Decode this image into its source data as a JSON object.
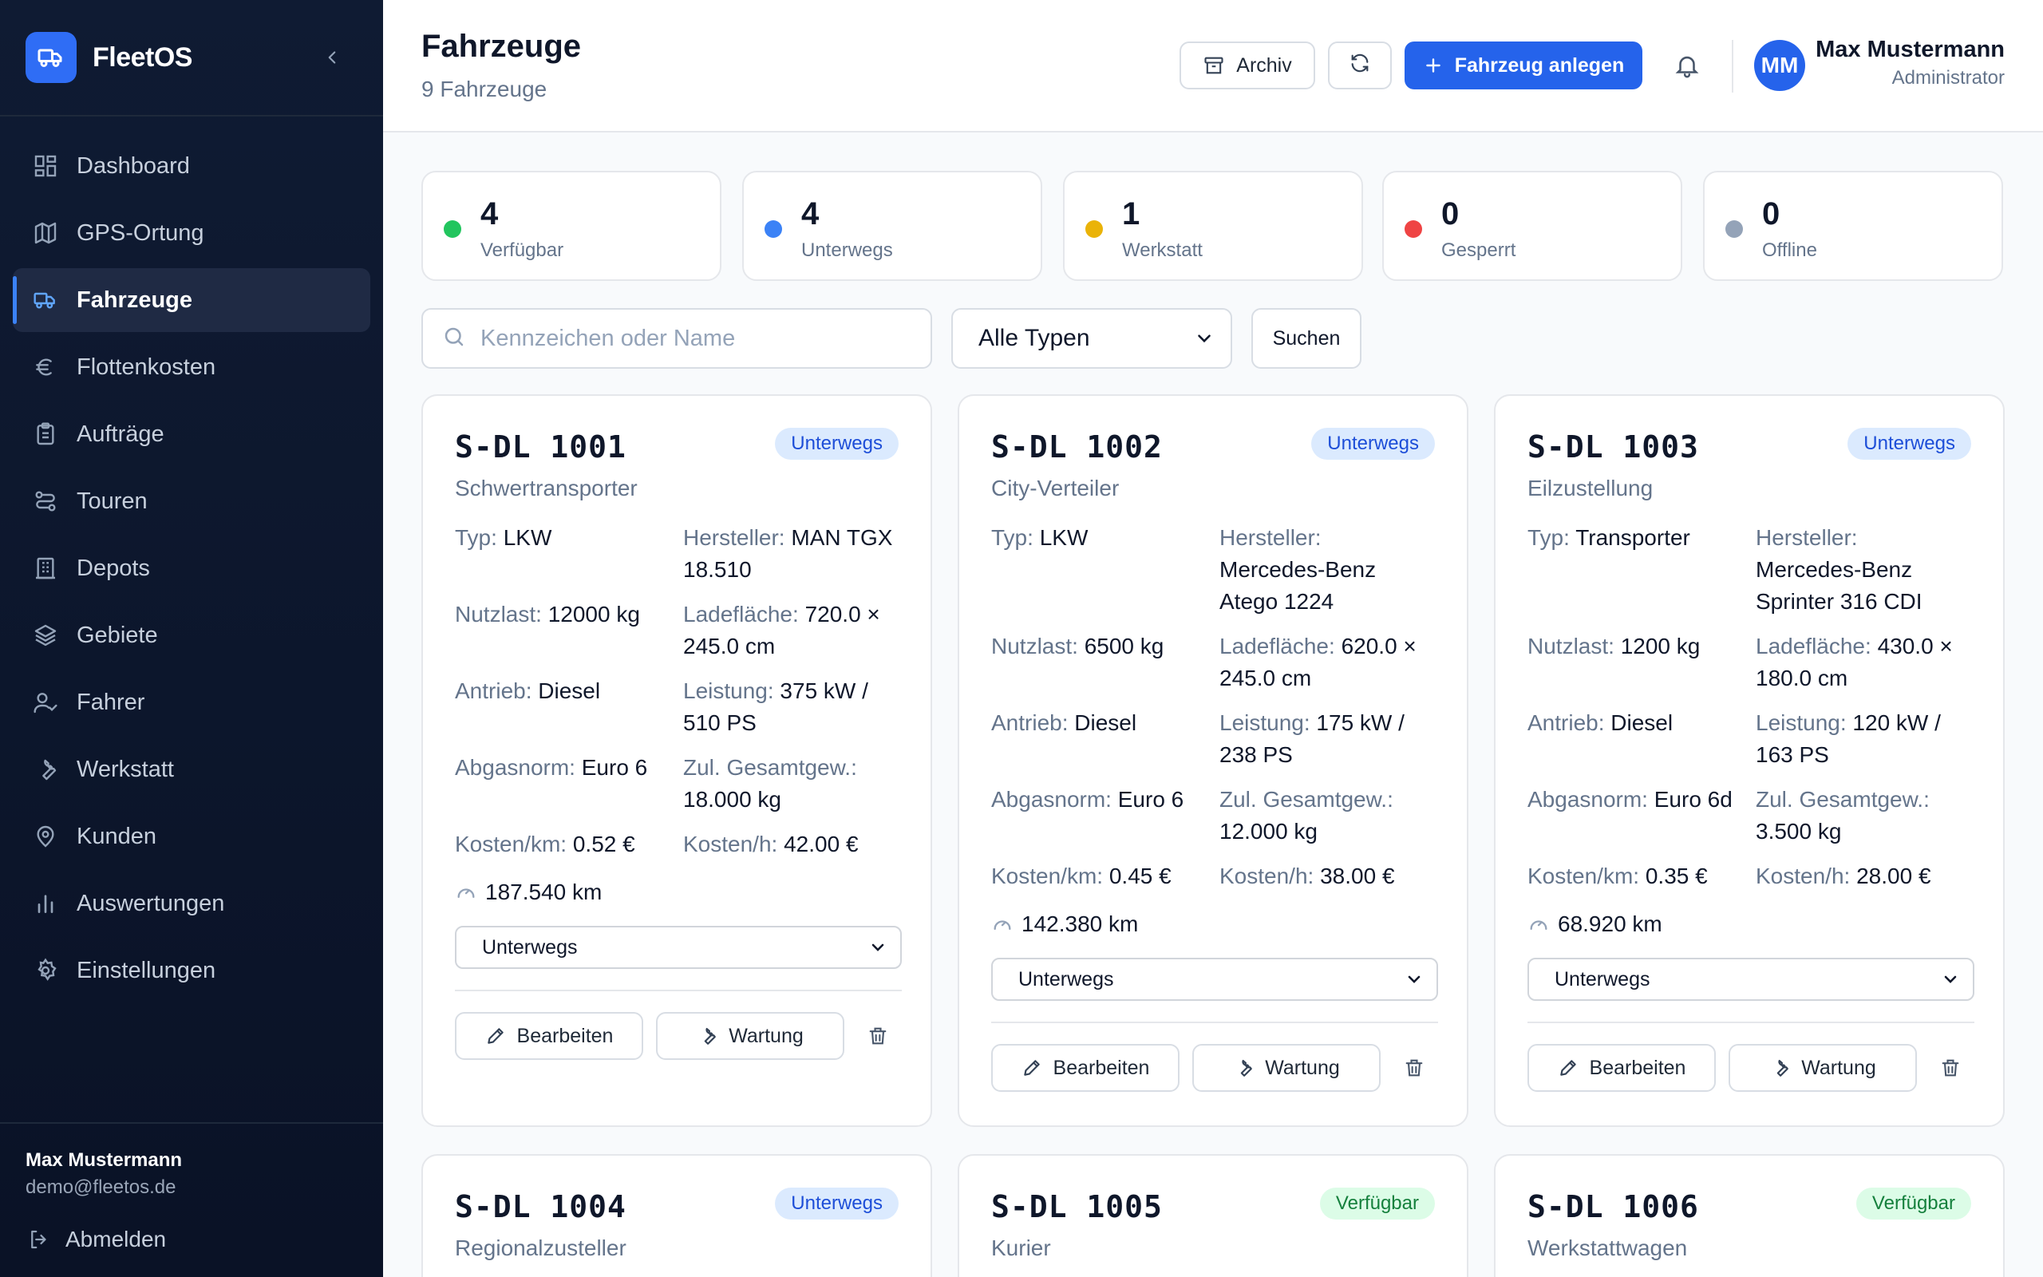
{
  "app": {
    "name": "FleetOS"
  },
  "sidebar": {
    "items": [
      {
        "label": "Dashboard",
        "icon": "dashboard-icon"
      },
      {
        "label": "GPS-Ortung",
        "icon": "map-icon"
      },
      {
        "label": "Fahrzeuge",
        "icon": "truck-icon",
        "active": true
      },
      {
        "label": "Flottenkosten",
        "icon": "euro-icon"
      },
      {
        "label": "Aufträge",
        "icon": "clipboard-icon"
      },
      {
        "label": "Touren",
        "icon": "route-icon"
      },
      {
        "label": "Depots",
        "icon": "building-icon"
      },
      {
        "label": "Gebiete",
        "icon": "layers-icon"
      },
      {
        "label": "Fahrer",
        "icon": "user-check-icon"
      },
      {
        "label": "Werkstatt",
        "icon": "wrench-icon"
      },
      {
        "label": "Kunden",
        "icon": "map-pin-icon"
      },
      {
        "label": "Auswertungen",
        "icon": "bar-chart-icon"
      },
      {
        "label": "Einstellungen",
        "icon": "gear-icon"
      }
    ],
    "footer": {
      "name": "Max Mustermann",
      "email": "demo@fleetos.de",
      "logout": "Abmelden"
    }
  },
  "header": {
    "title": "Fahrzeuge",
    "subtitle": "9 Fahrzeuge",
    "archive": "Archiv",
    "create": "Fahrzeug anlegen",
    "user": {
      "initials": "MM",
      "name": "Max Mustermann",
      "role": "Administrator"
    }
  },
  "colors": {
    "accent": "#2563eb",
    "available": "#22c55e",
    "onroute": "#3b82f6",
    "workshop": "#eab308",
    "blocked": "#ef4444",
    "offline": "#94a3b8"
  },
  "stats": [
    {
      "value": "4",
      "label": "Verfügbar"
    },
    {
      "value": "4",
      "label": "Unterwegs"
    },
    {
      "value": "1",
      "label": "Werkstatt"
    },
    {
      "value": "0",
      "label": "Gesperrt"
    },
    {
      "value": "0",
      "label": "Offline"
    }
  ],
  "filters": {
    "search_placeholder": "Kennzeichen oder Name",
    "search_value": "",
    "type": "Alle Typen",
    "search_button": "Suchen"
  },
  "labels": {
    "typ": "Typ:",
    "hersteller": "Hersteller:",
    "nutzlast": "Nutzlast:",
    "ladeflaeche": "Ladefläche:",
    "antrieb": "Antrieb:",
    "leistung": "Leistung:",
    "abgasnorm": "Abgasnorm:",
    "gesamtgew": "Zul. Gesamtgew.:",
    "kosten_km": "Kosten/km:",
    "kosten_h": "Kosten/h:",
    "edit": "Bearbeiten",
    "maintenance": "Wartung"
  },
  "vehicles": [
    {
      "plate": "S-DL 1001",
      "name": "Schwertransporter",
      "status": "Unterwegs",
      "typ": "LKW",
      "hersteller": "MAN TGX 18.510",
      "nutzlast": "12000 kg",
      "ladeflaeche": "720.0 × 245.0 cm",
      "antrieb": "Diesel",
      "leistung": "375 kW / 510 PS",
      "abgasnorm": "Euro 6",
      "gesamtgew": "18.000 kg",
      "kosten_km": "0.52 €",
      "kosten_h": "42.00 €",
      "km": "187.540 km",
      "status_select": "Unterwegs"
    },
    {
      "plate": "S-DL 1002",
      "name": "City-Verteiler",
      "status": "Unterwegs",
      "typ": "LKW",
      "hersteller": "Mercedes-Benz Atego 1224",
      "nutzlast": "6500 kg",
      "ladeflaeche": "620.0 × 245.0 cm",
      "antrieb": "Diesel",
      "leistung": "175 kW / 238 PS",
      "abgasnorm": "Euro 6",
      "gesamtgew": "12.000 kg",
      "kosten_km": "0.45 €",
      "kosten_h": "38.00 €",
      "km": "142.380 km",
      "status_select": "Unterwegs"
    },
    {
      "plate": "S-DL 1003",
      "name": "Eilzustellung",
      "status": "Unterwegs",
      "typ": "Transporter",
      "hersteller": "Mercedes-Benz Sprinter 316 CDI",
      "nutzlast": "1200 kg",
      "ladeflaeche": "430.0 × 180.0 cm",
      "antrieb": "Diesel",
      "leistung": "120 kW / 163 PS",
      "abgasnorm": "Euro 6d",
      "gesamtgew": "3.500 kg",
      "kosten_km": "0.35 €",
      "kosten_h": "28.00 €",
      "km": "68.920 km",
      "status_select": "Unterwegs"
    },
    {
      "plate": "S-DL 1004",
      "name": "Regionalzusteller",
      "status": "Unterwegs"
    },
    {
      "plate": "S-DL 1005",
      "name": "Kurier",
      "status": "Verfügbar"
    },
    {
      "plate": "S-DL 1006",
      "name": "Werkstattwagen",
      "status": "Verfügbar"
    }
  ]
}
